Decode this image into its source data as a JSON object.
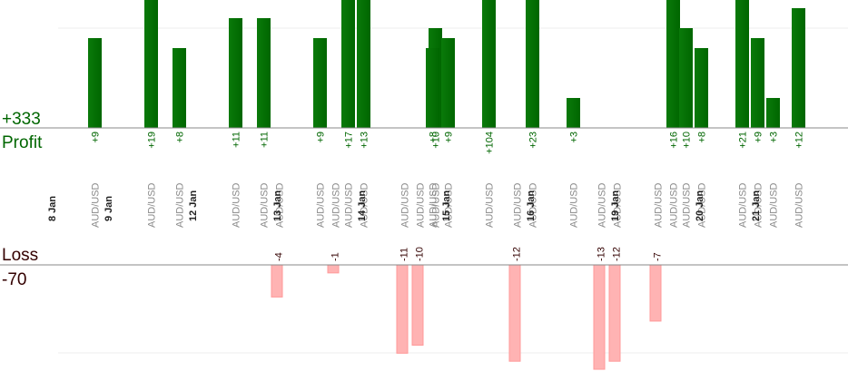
{
  "chart_data": {
    "type": "bar",
    "profit_total": "+333",
    "profit_label": "Profit",
    "loss_label": "Loss",
    "loss_total": "-70",
    "colors": {
      "profit_bar": "#006600",
      "profit_text": "#006600",
      "loss_bar": "#ffb3b3",
      "loss_text": "#330000",
      "axis": "#888888",
      "grid": "#eeeeee"
    },
    "profit_scale_max": 13,
    "loss_scale_max": 13,
    "dates": [
      {
        "label": "8 Jan",
        "slot": 1
      },
      {
        "label": "9 Jan",
        "slot": 3
      },
      {
        "label": "12 Jan",
        "slot": 6
      },
      {
        "label": "13 Jan",
        "slot": 9
      },
      {
        "label": "14 Jan",
        "slot": 12
      },
      {
        "label": "15 Jan",
        "slot": 15
      },
      {
        "label": "16 Jan",
        "slot": 18
      },
      {
        "label": "19 Jan",
        "slot": 21
      },
      {
        "label": "20 Jan",
        "slot": 24
      },
      {
        "label": "21 Jan",
        "slot": 26
      }
    ],
    "trades": [
      {
        "slot": 2,
        "pair": "AUD/USD",
        "profit": 9
      },
      {
        "slot": 4,
        "pair": "AUD/USD",
        "profit": 19
      },
      {
        "slot": 5,
        "pair": "AUD/USD",
        "profit": 8
      },
      {
        "slot": 7,
        "pair": "AUD/USD",
        "profit": 11
      },
      {
        "slot": 8,
        "pair": "AUD/USD",
        "profit": 11
      },
      {
        "slot": 8,
        "pair": "AUD/USD",
        "loss": -4
      },
      {
        "slot": 10,
        "pair": "AUD/USD",
        "profit": 9
      },
      {
        "slot": 10,
        "pair": "AUD/USD",
        "loss": -1
      },
      {
        "slot": 11,
        "pair": "AUD/USD",
        "profit": 17
      },
      {
        "slot": 11,
        "pair": "AUD/USD",
        "profit": 13
      },
      {
        "slot": 13,
        "pair": "AUD/USD",
        "loss": -11
      },
      {
        "slot": 13,
        "pair": "AUD/USD",
        "loss": -10
      },
      {
        "slot": 13,
        "pair": "AUD/USD",
        "profit": 10
      },
      {
        "slot": 14,
        "pair": "AUD/USD",
        "profit": 8
      },
      {
        "slot": 14,
        "pair": "AUD/USD",
        "profit": 9
      },
      {
        "slot": 16,
        "pair": "AUD/USD",
        "profit": 104
      },
      {
        "slot": 17,
        "pair": "AUD/USD",
        "loss": -12
      },
      {
        "slot": 17,
        "pair": "AUD/USD",
        "profit": 23
      },
      {
        "slot": 19,
        "pair": "AUD/USD",
        "profit": 3
      },
      {
        "slot": 20,
        "pair": "AUD/USD",
        "loss": -13
      },
      {
        "slot": 20,
        "pair": "AUD/USD",
        "loss": -12
      },
      {
        "slot": 22,
        "pair": "AUD/USD",
        "loss": -7
      },
      {
        "slot": 22,
        "pair": "AUD/USD",
        "profit": 16
      },
      {
        "slot": 23,
        "pair": "AUD/USD",
        "profit": 10
      },
      {
        "slot": 23,
        "pair": "AUD/USD",
        "profit": 8
      },
      {
        "slot": 25,
        "pair": "AUD/USD",
        "profit": 21
      },
      {
        "slot": 25,
        "pair": "AUD/USD",
        "profit": 9
      },
      {
        "slot": 25,
        "pair": "AUD/USD",
        "profit": 3
      },
      {
        "slot": 27,
        "pair": "AUD/USD",
        "profit": 12
      }
    ]
  }
}
